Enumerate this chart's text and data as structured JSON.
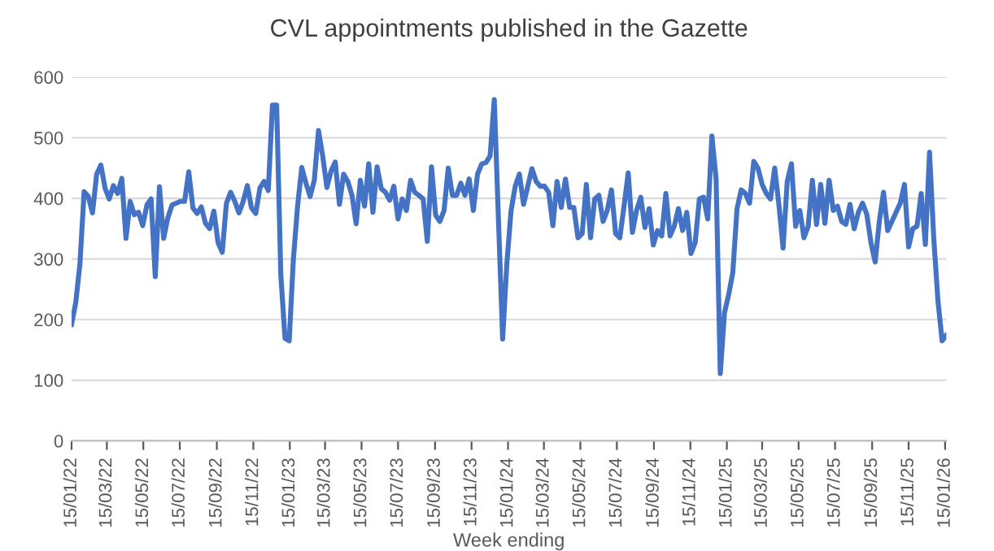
{
  "chart_data": {
    "type": "line",
    "title": "CVL appointments published in the Gazette",
    "xlabel": "Week ending",
    "x": [
      "2022-01-15",
      "2022-01-22",
      "2022-01-29",
      "2022-02-05",
      "2022-02-12",
      "2022-02-19",
      "2022-02-26",
      "2022-03-05",
      "2022-03-12",
      "2022-03-19",
      "2022-03-26",
      "2022-04-02",
      "2022-04-09",
      "2022-04-16",
      "2022-04-23",
      "2022-04-30",
      "2022-05-07",
      "2022-05-14",
      "2022-05-21",
      "2022-05-28",
      "2022-06-04",
      "2022-06-11",
      "2022-06-18",
      "2022-06-25",
      "2022-07-02",
      "2022-07-09",
      "2022-07-16",
      "2022-07-23",
      "2022-07-30",
      "2022-08-06",
      "2022-08-13",
      "2022-08-20",
      "2022-08-27",
      "2022-09-03",
      "2022-09-10",
      "2022-09-17",
      "2022-09-24",
      "2022-10-01",
      "2022-10-08",
      "2022-10-15",
      "2022-10-22",
      "2022-10-29",
      "2022-11-05",
      "2022-11-12",
      "2022-11-19",
      "2022-11-26",
      "2022-12-03",
      "2022-12-10",
      "2022-12-17",
      "2022-12-24",
      "2022-12-31",
      "2023-01-07",
      "2023-01-14",
      "2023-01-21",
      "2023-01-28",
      "2023-02-04",
      "2023-02-11",
      "2023-02-18",
      "2023-02-25",
      "2023-03-04",
      "2023-03-11",
      "2023-03-18",
      "2023-03-25",
      "2023-04-01",
      "2023-04-08",
      "2023-04-15",
      "2023-04-22",
      "2023-04-29",
      "2023-05-06",
      "2023-05-13",
      "2023-05-20",
      "2023-05-27",
      "2023-06-03",
      "2023-06-10",
      "2023-06-17",
      "2023-06-24",
      "2023-07-01",
      "2023-07-08",
      "2023-07-15",
      "2023-07-22",
      "2023-07-29",
      "2023-08-05",
      "2023-08-12",
      "2023-08-19",
      "2023-08-26",
      "2023-09-02",
      "2023-09-09",
      "2023-09-16",
      "2023-09-23",
      "2023-09-30",
      "2023-10-07",
      "2023-10-14",
      "2023-10-21",
      "2023-10-28",
      "2023-11-04",
      "2023-11-11",
      "2023-11-18",
      "2023-11-25",
      "2023-12-02",
      "2023-12-09",
      "2023-12-16",
      "2023-12-23",
      "2023-12-30",
      "2024-01-06",
      "2024-01-13",
      "2024-01-20",
      "2024-01-27",
      "2024-02-03",
      "2024-02-10",
      "2024-02-17",
      "2024-02-24",
      "2024-03-02",
      "2024-03-09",
      "2024-03-16",
      "2024-03-23",
      "2024-03-30",
      "2024-04-06",
      "2024-04-13",
      "2024-04-20",
      "2024-04-27",
      "2024-05-04",
      "2024-05-11",
      "2024-05-18",
      "2024-05-25",
      "2024-06-01",
      "2024-06-08",
      "2024-06-15",
      "2024-06-22",
      "2024-06-29",
      "2024-07-06",
      "2024-07-13",
      "2024-07-20",
      "2024-07-27",
      "2024-08-03",
      "2024-08-10",
      "2024-08-17",
      "2024-08-24",
      "2024-08-31",
      "2024-09-07",
      "2024-09-14",
      "2024-09-21",
      "2024-09-28",
      "2024-10-05",
      "2024-10-12",
      "2024-10-19",
      "2024-10-26",
      "2024-11-02",
      "2024-11-09",
      "2024-11-16",
      "2024-11-23",
      "2024-11-30",
      "2024-12-07",
      "2024-12-14",
      "2024-12-21",
      "2024-12-28",
      "2025-01-04",
      "2025-01-11",
      "2025-01-18",
      "2025-01-25",
      "2025-02-01",
      "2025-02-08",
      "2025-02-15",
      "2025-02-22",
      "2025-03-01",
      "2025-03-08",
      "2025-03-15",
      "2025-03-22",
      "2025-03-29",
      "2025-04-05",
      "2025-04-12",
      "2025-04-19",
      "2025-04-26",
      "2025-05-03",
      "2025-05-10",
      "2025-05-17",
      "2025-05-24",
      "2025-05-31",
      "2025-06-07",
      "2025-06-14",
      "2025-06-21",
      "2025-06-28",
      "2025-07-05",
      "2025-07-12",
      "2025-07-19",
      "2025-07-26",
      "2025-08-02",
      "2025-08-09",
      "2025-08-16",
      "2025-08-23",
      "2025-08-30",
      "2025-09-06",
      "2025-09-13",
      "2025-09-20",
      "2025-09-27",
      "2025-10-04",
      "2025-10-11",
      "2025-10-18",
      "2025-10-25",
      "2025-11-01",
      "2025-11-08",
      "2025-11-15",
      "2025-11-22",
      "2025-11-29",
      "2025-12-06",
      "2025-12-13",
      "2025-12-20",
      "2025-12-27",
      "2026-01-03",
      "2026-01-10",
      "2026-01-17"
    ],
    "series": [
      {
        "color": "#4472c4",
        "values": [
          192,
          228,
          292,
          411,
          403,
          376,
          440,
          455,
          417,
          399,
          421,
          408,
          433,
          334,
          395,
          373,
          377,
          355,
          389,
          399,
          271,
          419,
          334,
          368,
          389,
          392,
          395,
          395,
          444,
          384,
          375,
          386,
          359,
          350,
          379,
          327,
          311,
          392,
          410,
          395,
          376,
          395,
          421,
          384,
          375,
          417,
          428,
          413,
          554,
          554,
          273,
          169,
          165,
          300,
          387,
          451,
          425,
          403,
          430,
          512,
          470,
          418,
          445,
          460,
          390,
          440,
          428,
          405,
          358,
          430,
          387,
          457,
          377,
          452,
          416,
          410,
          397,
          420,
          366,
          399,
          380,
          430,
          410,
          405,
          399,
          329,
          452,
          372,
          362,
          380,
          450,
          405,
          405,
          425,
          405,
          432,
          380,
          440,
          457,
          459,
          470,
          563,
          365,
          168,
          292,
          379,
          420,
          440,
          390,
          420,
          449,
          428,
          420,
          420,
          410,
          355,
          428,
          385,
          432,
          385,
          385,
          335,
          342,
          423,
          335,
          399,
          405,
          362,
          380,
          414,
          342,
          335,
          387,
          442,
          344,
          380,
          402,
          352,
          383,
          323,
          347,
          338,
          408,
          338,
          354,
          383,
          347,
          377,
          309,
          327,
          399,
          402,
          366,
          503,
          432,
          111,
          211,
          241,
          278,
          383,
          414,
          408,
          392,
          461,
          450,
          423,
          408,
          399,
          450,
          390,
          318,
          428,
          457,
          354,
          380,
          335,
          354,
          430,
          357,
          423,
          359,
          430,
          380,
          387,
          362,
          357,
          390,
          350,
          377,
          392,
          374,
          327,
          295,
          362,
          410,
          347,
          362,
          377,
          392,
          423,
          320,
          350,
          354,
          408,
          324,
          476,
          335,
          232,
          165,
          174
        ]
      }
    ],
    "xlim": [
      "2022-01-15",
      "2026-01-17"
    ],
    "xticks": [
      {
        "value": "2022-01-15",
        "label": "15/01/22"
      },
      {
        "value": "2022-03-15",
        "label": "15/03/22"
      },
      {
        "value": "2022-05-15",
        "label": "15/05/22"
      },
      {
        "value": "2022-07-15",
        "label": "15/07/22"
      },
      {
        "value": "2022-09-15",
        "label": "15/09/22"
      },
      {
        "value": "2022-11-15",
        "label": "15/11/22"
      },
      {
        "value": "2023-01-15",
        "label": "15/01/23"
      },
      {
        "value": "2023-03-15",
        "label": "15/03/23"
      },
      {
        "value": "2023-05-15",
        "label": "15/05/23"
      },
      {
        "value": "2023-07-15",
        "label": "15/07/23"
      },
      {
        "value": "2023-09-15",
        "label": "15/09/23"
      },
      {
        "value": "2023-11-15",
        "label": "15/11/23"
      },
      {
        "value": "2024-01-15",
        "label": "15/01/24"
      },
      {
        "value": "2024-03-15",
        "label": "15/03/24"
      },
      {
        "value": "2024-05-15",
        "label": "15/05/24"
      },
      {
        "value": "2024-07-15",
        "label": "15/07/24"
      },
      {
        "value": "2024-09-15",
        "label": "15/09/24"
      },
      {
        "value": "2024-11-15",
        "label": "15/11/24"
      },
      {
        "value": "2025-01-15",
        "label": "15/01/25"
      },
      {
        "value": "2025-03-15",
        "label": "15/03/25"
      },
      {
        "value": "2025-05-15",
        "label": "15/05/25"
      },
      {
        "value": "2025-07-15",
        "label": "15/07/25"
      },
      {
        "value": "2025-09-15",
        "label": "15/09/25"
      },
      {
        "value": "2025-11-15",
        "label": "15/11/25"
      },
      {
        "value": "2026-01-15",
        "label": "15/01/26"
      }
    ],
    "ylim": [
      0,
      600
    ],
    "yticks": [
      0,
      100,
      200,
      300,
      400,
      500,
      600
    ],
    "grid": "y",
    "marker": "none",
    "line_style": "solid"
  }
}
